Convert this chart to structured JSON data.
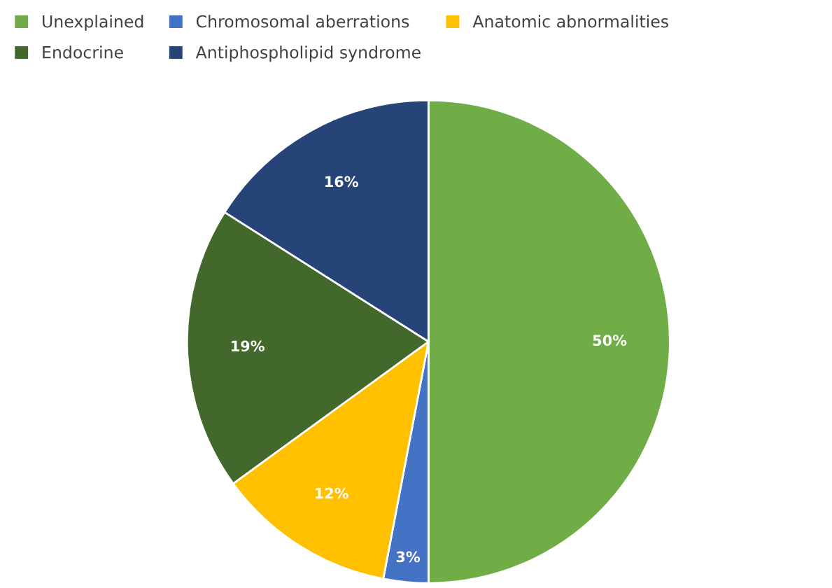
{
  "chart_data": {
    "type": "pie",
    "categories": [
      "Unexplained",
      "Chromosomal aberrations",
      "Anatomic abnormalities",
      "Endocrine",
      "Antiphospholipid syndrome"
    ],
    "values": [
      50,
      3,
      12,
      19,
      16
    ],
    "colors": [
      "#70ad47",
      "#4472c4",
      "#ffc000",
      "#43682b",
      "#264478"
    ],
    "value_labels": [
      "50%",
      "3%",
      "12%",
      "19%",
      "16%"
    ],
    "legend": "top left"
  }
}
